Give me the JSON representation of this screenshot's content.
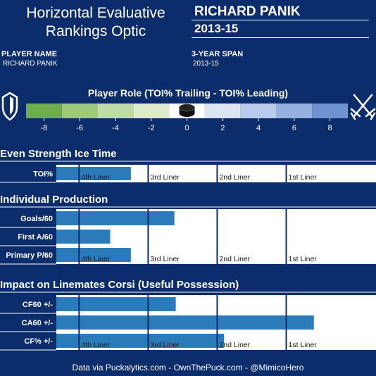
{
  "header": {
    "title_line1": "Horizontal Evaluative",
    "title_line2": "Rankings Optic",
    "player_name": "RICHARD PANIK",
    "season": "2013-15"
  },
  "meta": {
    "player_label": "PLAYER NAME",
    "player_value": "RICHARD PANIK",
    "span_label": "3-YEAR SPAN",
    "span_value": "2013-15"
  },
  "role": {
    "title": "Player Role (TOI% Trailing - TOI% Leading)",
    "ticks": [
      "-8",
      "-6",
      "-4",
      "-2",
      "0",
      "2",
      "4",
      "6",
      "8"
    ],
    "scale_range": [
      -9,
      9
    ],
    "colors": [
      "#6fae4c",
      "#9cc77c",
      "#bfdba9",
      "#dbeccd",
      "#ffffff",
      "#dce6f5",
      "#b8cbea",
      "#93b0de",
      "#6f93d1"
    ],
    "marker_value": 0
  },
  "sections": [
    {
      "title": "Even Strength Ice Time",
      "rows": [
        {
          "label": "TOI%",
          "value": 0.75
        }
      ]
    },
    {
      "title": "Individual Production",
      "rows": [
        {
          "label": "Goals/60",
          "value": 1.38
        },
        {
          "label": "First A/60",
          "value": 0.45
        },
        {
          "label": "Primary P/60",
          "value": 0.75
        }
      ]
    },
    {
      "title": "Impact on Linemates Corsi (Useful Possession)",
      "rows": [
        {
          "label": "CF60 +/-",
          "value": 1.4
        },
        {
          "label": "CA60 +/-",
          "value": 3.4
        },
        {
          "label": "CF% +/-",
          "value": 2.1
        }
      ]
    }
  ],
  "chart_data": {
    "type": "bar",
    "tiers": [
      "4th Liner",
      "3rd Liner",
      "2nd Liner",
      "1st Liner"
    ],
    "tier_thresholds": [
      0,
      1,
      2,
      3
    ],
    "xlim": [
      -0.33,
      4.3
    ],
    "series": [
      {
        "categories": [
          "TOI%"
        ],
        "values": [
          0.75
        ]
      },
      {
        "categories": [
          "Goals/60",
          "First A/60",
          "Primary P/60"
        ],
        "values": [
          1.38,
          0.45,
          0.75
        ]
      },
      {
        "categories": [
          "CF60 +/-",
          "CA60 +/-",
          "CF% +/-"
        ],
        "values": [
          1.4,
          3.4,
          2.1
        ]
      }
    ]
  },
  "colors": {
    "background": "#0c2d6b",
    "bar": "#2b7bba",
    "tier_line": "#0c2d6b",
    "panel": "#ffffff"
  },
  "footer": "Data via Puckalytics.com - OwnThePuck.com - @MimicoHero"
}
